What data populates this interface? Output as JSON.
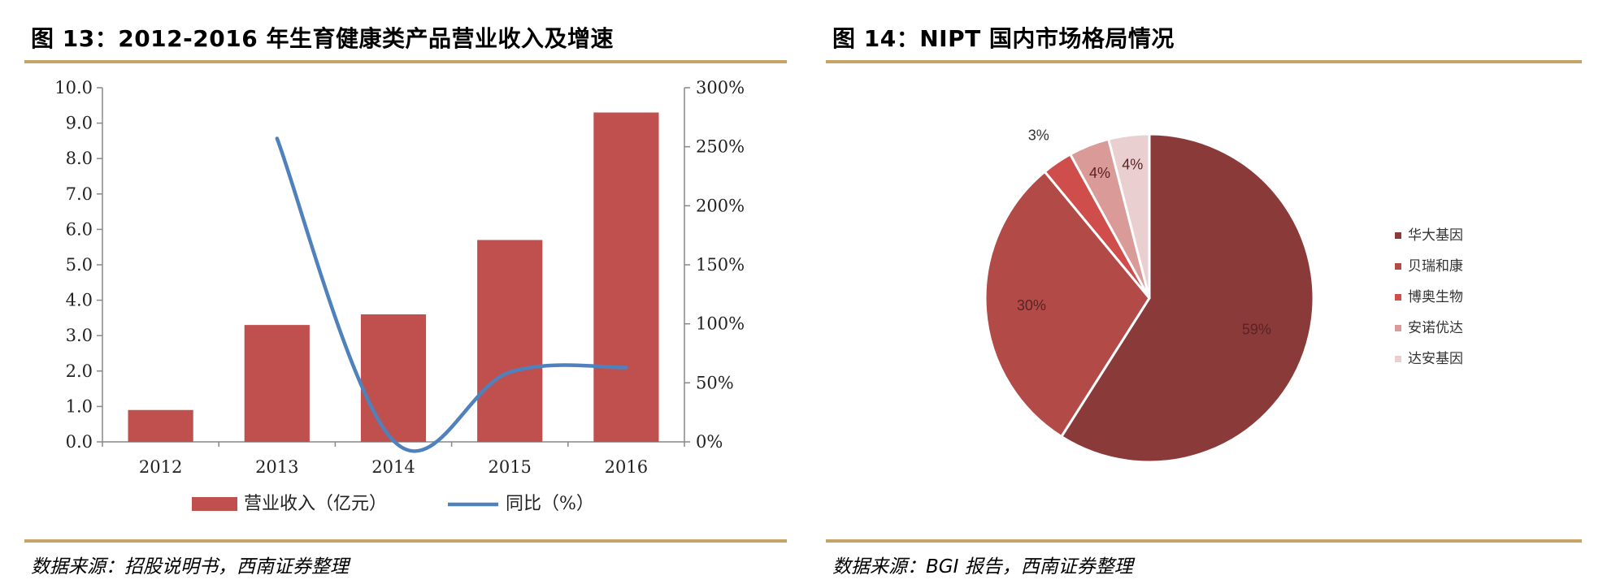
{
  "left": {
    "title": "图 13：2012-2016 年生育健康类产品营业收入及增速",
    "source": "数据来源：招股说明书，西南证券整理",
    "legend": {
      "bar": "营业收入（亿元）",
      "line": "同比（%）"
    }
  },
  "right": {
    "title": "图 14：NIPT 国内市场格局情况",
    "source": "数据来源：BGI 报告，西南证券整理"
  },
  "chart_data": [
    {
      "type": "bar",
      "title": "2012-2016 年生育健康类产品营业收入及增速",
      "categories": [
        "2012",
        "2013",
        "2014",
        "2015",
        "2016"
      ],
      "series": [
        {
          "name": "营业收入（亿元）",
          "kind": "bar",
          "axis": "left",
          "values": [
            0.9,
            3.3,
            3.6,
            5.7,
            9.3
          ]
        },
        {
          "name": "同比（%）",
          "kind": "line",
          "axis": "right",
          "values": [
            null,
            257,
            1,
            59,
            63
          ]
        }
      ],
      "y_left": {
        "min": 0,
        "max": 10,
        "ticks": [
          "0.0",
          "1.0",
          "2.0",
          "3.0",
          "4.0",
          "5.0",
          "6.0",
          "7.0",
          "8.0",
          "9.0",
          "10.0"
        ]
      },
      "y_right": {
        "min": 0,
        "max": 300,
        "ticks": [
          "0%",
          "50%",
          "100%",
          "150%",
          "200%",
          "250%",
          "300%"
        ]
      },
      "legend_position": "bottom",
      "colors": {
        "bar": "#c0504d",
        "line": "#4f81bd"
      }
    },
    {
      "type": "pie",
      "title": "NIPT 国内市场格局情况",
      "slices": [
        {
          "name": "华大基因",
          "value": 59,
          "label": "59%",
          "color": "#8b3a3a"
        },
        {
          "name": "贝瑞和康",
          "value": 30,
          "label": "30%",
          "color": "#b24a48"
        },
        {
          "name": "博奥生物",
          "value": 3,
          "label": "3%",
          "color": "#cf4e4c"
        },
        {
          "name": "安诺优达",
          "value": 4,
          "label": "4%",
          "color": "#d99a98"
        },
        {
          "name": "达安基因",
          "value": 4,
          "label": "4%",
          "color": "#e9cfcf"
        }
      ],
      "legend_position": "right"
    }
  ]
}
